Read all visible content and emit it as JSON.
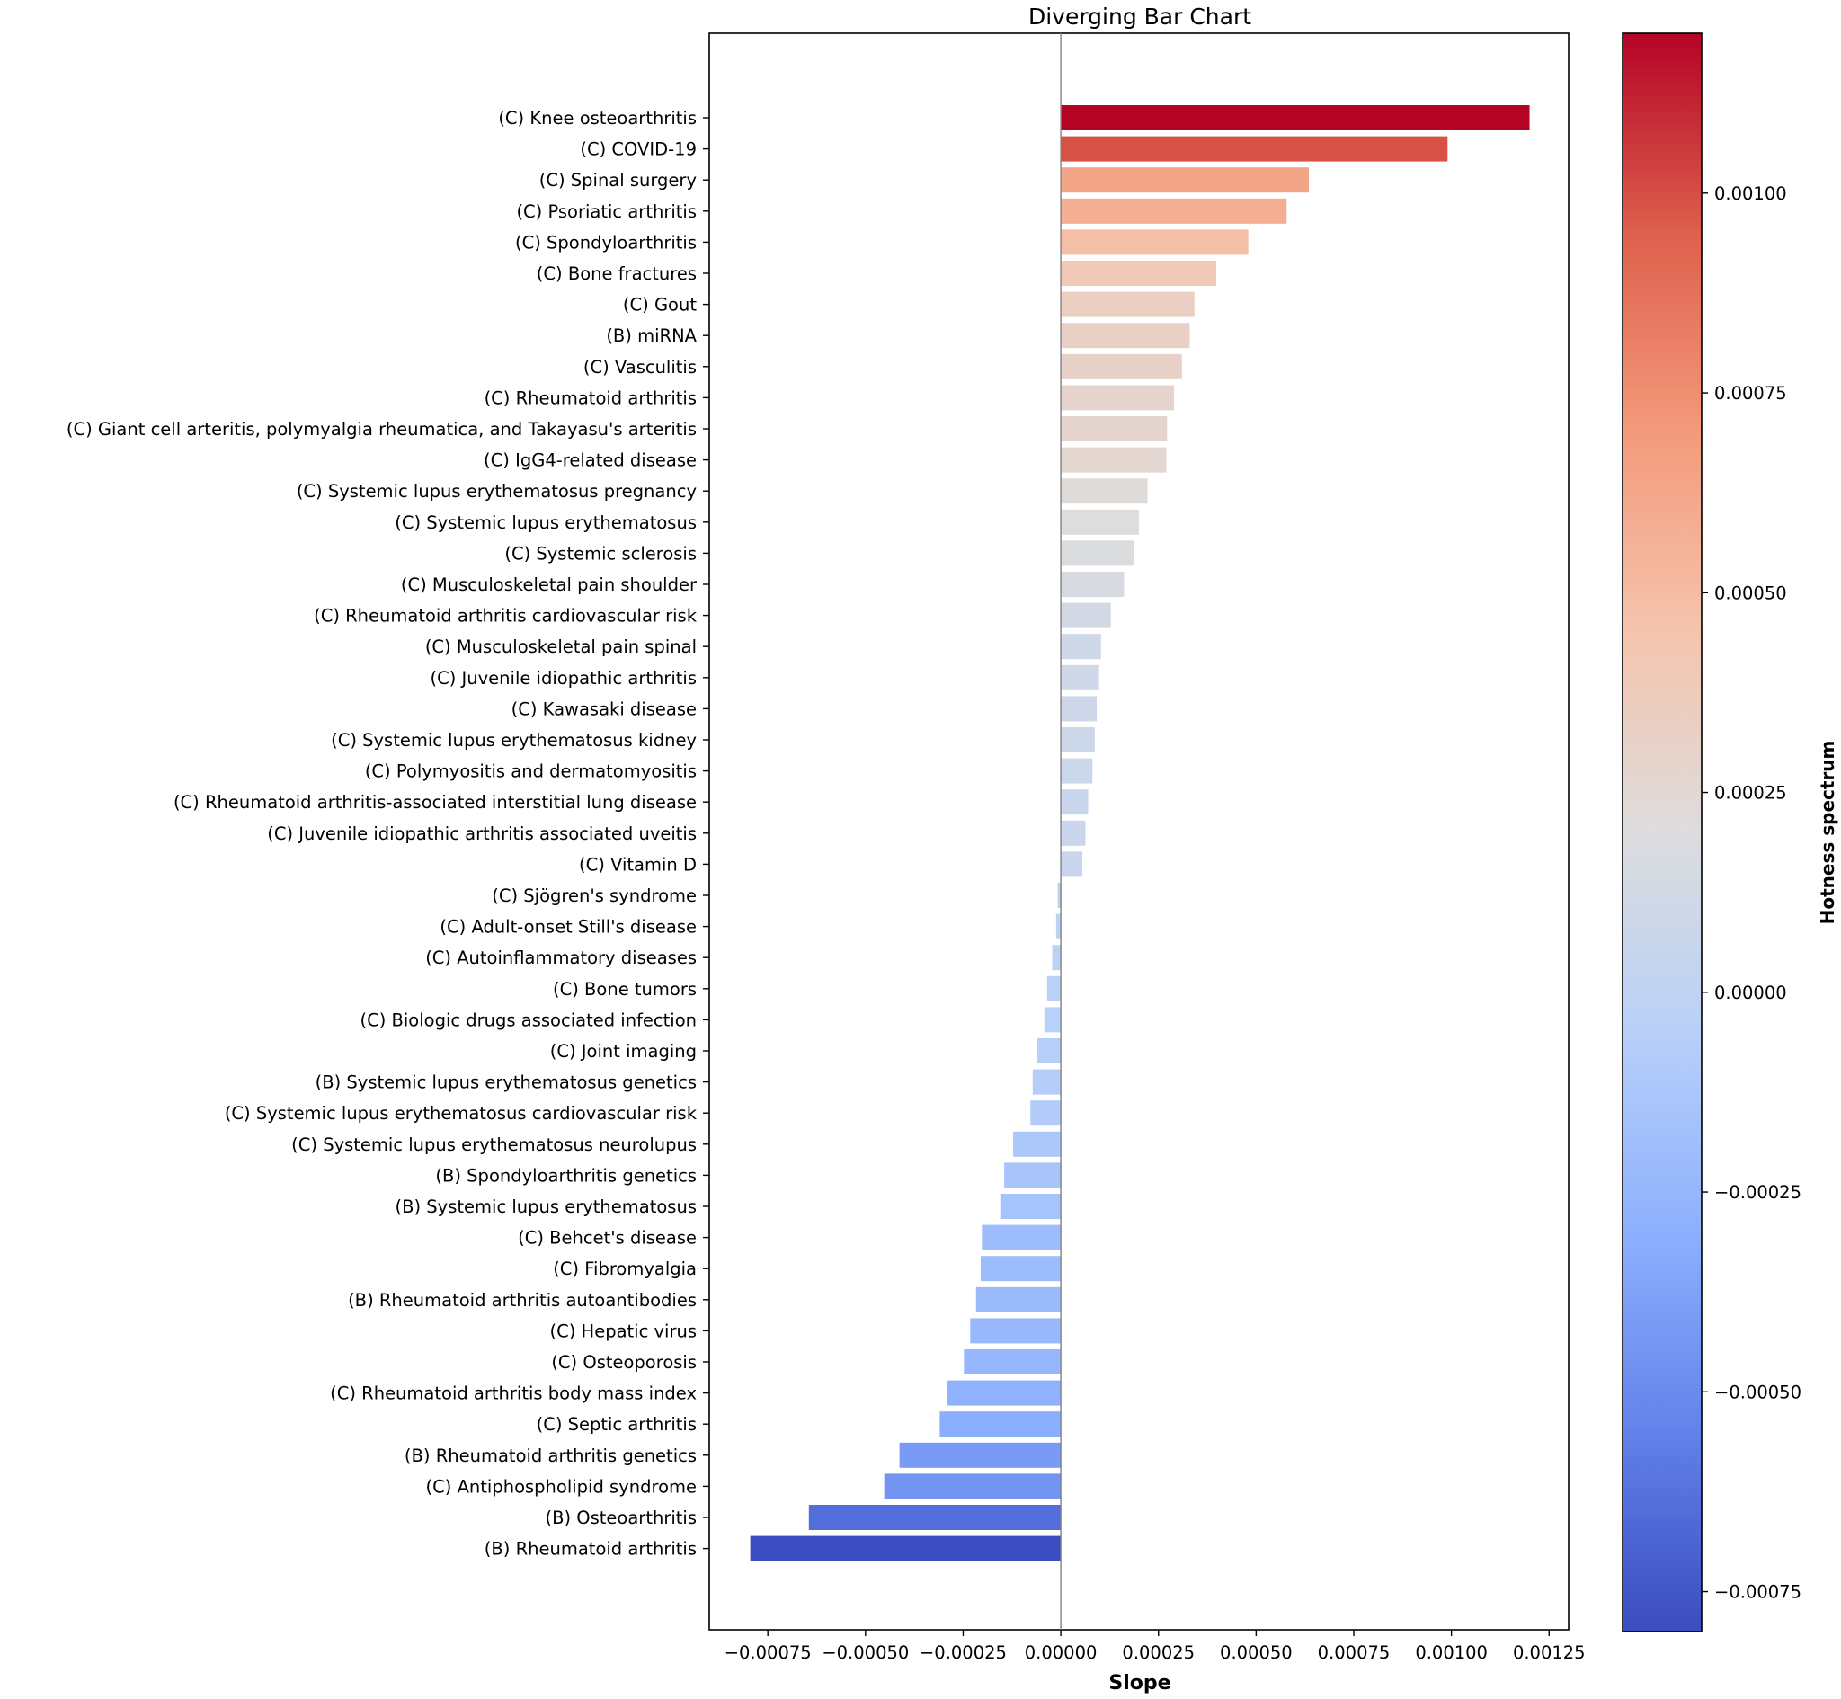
{
  "chart_data": {
    "type": "bar",
    "orientation": "horizontal",
    "title": "Diverging Bar Chart",
    "xlabel": "Slope",
    "ylabel": "",
    "xlim": [
      -0.0009,
      0.0013
    ],
    "xticks": [
      -0.00075,
      -0.0005,
      -0.00025,
      0.0,
      0.00025,
      0.0005,
      0.00075,
      0.001,
      0.00125
    ],
    "xtick_labels": [
      "−0.00075",
      "−0.00050",
      "−0.00025",
      "0.00000",
      "0.00025",
      "0.00050",
      "0.00075",
      "0.00100",
      "0.00125"
    ],
    "grid": false,
    "zero_line": true,
    "categories": [
      "(C) Knee osteoarthritis",
      "(C) COVID-19",
      "(C) Spinal surgery",
      "(C) Psoriatic arthritis",
      "(C) Spondyloarthritis",
      "(C) Bone fractures",
      "(C) Gout",
      "(B) miRNA",
      "(C) Vasculitis",
      "(C) Rheumatoid arthritis",
      "(C) Giant cell arteritis, polymyalgia rheumatica, and Takayasu's arteritis",
      "(C) IgG4-related disease",
      "(C) Systemic lupus erythematosus pregnancy",
      "(C) Systemic lupus erythematosus",
      "(C) Systemic sclerosis",
      "(C) Musculoskeletal pain shoulder",
      "(C) Rheumatoid arthritis cardiovascular risk",
      "(C) Musculoskeletal pain spinal",
      "(C) Juvenile idiopathic arthritis",
      "(C) Kawasaki disease",
      "(C) Systemic lupus erythematosus kidney",
      "(C) Polymyositis and dermatomyositis",
      "(C) Rheumatoid arthritis-associated interstitial lung disease",
      "(C) Juvenile idiopathic arthritis associated uveitis",
      "(C) Vitamin D",
      "(C) Sjögren's syndrome",
      "(C) Adult-onset Still's disease",
      "(C) Autoinflammatory diseases",
      "(C) Bone tumors",
      "(C) Biologic drugs associated infection",
      "(C) Joint imaging",
      "(B) Systemic lupus erythematosus genetics",
      "(C) Systemic lupus erythematosus cardiovascular risk",
      "(C) Systemic lupus erythematosus neurolupus",
      "(B) Spondyloarthritis genetics",
      "(B) Systemic lupus erythematosus",
      "(C) Behcet's disease",
      "(C) Fibromyalgia",
      "(B) Rheumatoid arthritis autoantibodies",
      "(C) Hepatic virus",
      "(C) Osteoporosis",
      "(C) Rheumatoid arthritis body mass index",
      "(C) Septic arthritis",
      "(B) Rheumatoid arthritis genetics",
      "(C) Antiphospholipid syndrome",
      "(B) Osteoarthritis",
      "(B) Rheumatoid arthritis"
    ],
    "values": [
      0.0012,
      0.00099,
      0.000635,
      0.000578,
      0.00048,
      0.000398,
      0.000342,
      0.00033,
      0.00031,
      0.00029,
      0.000272,
      0.00027,
      0.000222,
      0.0002,
      0.000188,
      0.000162,
      0.000128,
      0.000103,
      9.8e-05,
      9.2e-05,
      8.7e-05,
      8.1e-05,
      7e-05,
      6.3e-05,
      5.5e-05,
      -8e-06,
      -1.2e-05,
      -2.2e-05,
      -3.5e-05,
      -4.2e-05,
      -6e-05,
      -7.2e-05,
      -7.8e-05,
      -0.000122,
      -0.000145,
      -0.000155,
      -0.000202,
      -0.000205,
      -0.000217,
      -0.000232,
      -0.000248,
      -0.00029,
      -0.00031,
      -0.000413,
      -0.000452,
      -0.000645,
      -0.000795
    ],
    "colorbar": {
      "label": "Hotness spectrum",
      "colormap": "coolwarm",
      "range": [
        -0.0008,
        0.0012
      ],
      "ticks": [
        -0.00075,
        -0.0005,
        -0.00025,
        0.0,
        0.00025,
        0.0005,
        0.00075,
        0.001
      ],
      "tick_labels": [
        "−0.00075",
        "−0.00050",
        "−0.00025",
        "0.00000",
        "0.00025",
        "0.00050",
        "0.00075",
        "0.00100"
      ],
      "placement": "right"
    },
    "colors": {
      "axis": "#000000",
      "zero_line": "#808080"
    }
  }
}
